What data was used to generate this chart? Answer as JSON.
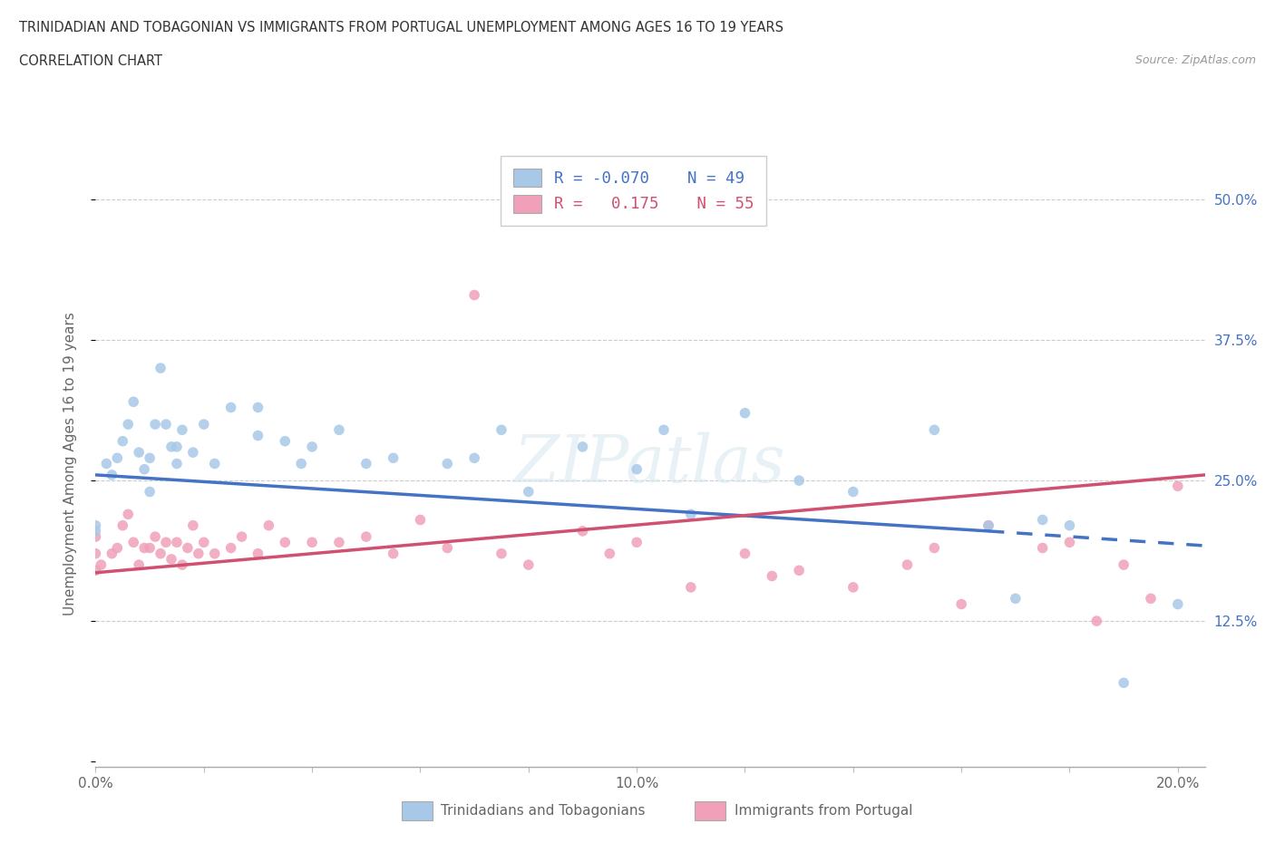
{
  "title_line1": "TRINIDADIAN AND TOBAGONIAN VS IMMIGRANTS FROM PORTUGAL UNEMPLOYMENT AMONG AGES 16 TO 19 YEARS",
  "title_line2": "CORRELATION CHART",
  "source_text": "Source: ZipAtlas.com",
  "ylabel": "Unemployment Among Ages 16 to 19 years",
  "xlim": [
    0.0,
    0.205
  ],
  "ylim": [
    -0.005,
    0.535
  ],
  "blue_color": "#a8c8e8",
  "pink_color": "#f0a0b8",
  "blue_line_color": "#4472c4",
  "pink_line_color": "#d05070",
  "blue_R": -0.07,
  "blue_N": 49,
  "pink_R": 0.175,
  "pink_N": 55,
  "ytick_positions": [
    0.0,
    0.125,
    0.25,
    0.375,
    0.5
  ],
  "ytick_labels_right": [
    "",
    "12.5%",
    "25.0%",
    "37.5%",
    "50.0%"
  ],
  "xtick_positions": [
    0.0,
    0.02,
    0.04,
    0.06,
    0.08,
    0.1,
    0.12,
    0.14,
    0.16,
    0.18,
    0.2
  ],
  "xtick_labels": [
    "0.0%",
    "",
    "",
    "",
    "",
    "10.0%",
    "",
    "",
    "",
    "",
    "20.0%"
  ],
  "blue_line_x0": 0.0,
  "blue_line_y0": 0.255,
  "blue_line_x1": 0.165,
  "blue_line_y1": 0.205,
  "blue_line_dash_x0": 0.165,
  "blue_line_dash_y0": 0.205,
  "blue_line_dash_x1": 0.205,
  "blue_line_dash_y1": 0.192,
  "pink_line_x0": 0.0,
  "pink_line_y0": 0.168,
  "pink_line_x1": 0.205,
  "pink_line_y1": 0.255,
  "blue_x": [
    0.0,
    0.0,
    0.002,
    0.003,
    0.004,
    0.005,
    0.006,
    0.007,
    0.008,
    0.009,
    0.01,
    0.01,
    0.011,
    0.012,
    0.013,
    0.014,
    0.015,
    0.015,
    0.016,
    0.018,
    0.02,
    0.022,
    0.025,
    0.03,
    0.03,
    0.035,
    0.038,
    0.04,
    0.045,
    0.05,
    0.055,
    0.065,
    0.07,
    0.075,
    0.08,
    0.09,
    0.1,
    0.105,
    0.11,
    0.12,
    0.13,
    0.14,
    0.155,
    0.165,
    0.17,
    0.175,
    0.18,
    0.19,
    0.2
  ],
  "blue_y": [
    0.205,
    0.21,
    0.265,
    0.255,
    0.27,
    0.285,
    0.3,
    0.32,
    0.275,
    0.26,
    0.27,
    0.24,
    0.3,
    0.35,
    0.3,
    0.28,
    0.265,
    0.28,
    0.295,
    0.275,
    0.3,
    0.265,
    0.315,
    0.29,
    0.315,
    0.285,
    0.265,
    0.28,
    0.295,
    0.265,
    0.27,
    0.265,
    0.27,
    0.295,
    0.24,
    0.28,
    0.26,
    0.295,
    0.22,
    0.31,
    0.25,
    0.24,
    0.295,
    0.21,
    0.145,
    0.215,
    0.21,
    0.07,
    0.14
  ],
  "pink_x": [
    0.0,
    0.0,
    0.0,
    0.001,
    0.003,
    0.004,
    0.005,
    0.006,
    0.007,
    0.008,
    0.009,
    0.01,
    0.011,
    0.012,
    0.013,
    0.014,
    0.015,
    0.016,
    0.017,
    0.018,
    0.019,
    0.02,
    0.022,
    0.025,
    0.027,
    0.03,
    0.032,
    0.035,
    0.04,
    0.045,
    0.05,
    0.055,
    0.06,
    0.065,
    0.07,
    0.075,
    0.08,
    0.09,
    0.095,
    0.1,
    0.11,
    0.12,
    0.125,
    0.13,
    0.14,
    0.15,
    0.155,
    0.16,
    0.165,
    0.175,
    0.18,
    0.185,
    0.19,
    0.195,
    0.2
  ],
  "pink_y": [
    0.17,
    0.185,
    0.2,
    0.175,
    0.185,
    0.19,
    0.21,
    0.22,
    0.195,
    0.175,
    0.19,
    0.19,
    0.2,
    0.185,
    0.195,
    0.18,
    0.195,
    0.175,
    0.19,
    0.21,
    0.185,
    0.195,
    0.185,
    0.19,
    0.2,
    0.185,
    0.21,
    0.195,
    0.195,
    0.195,
    0.2,
    0.185,
    0.215,
    0.19,
    0.415,
    0.185,
    0.175,
    0.205,
    0.185,
    0.195,
    0.155,
    0.185,
    0.165,
    0.17,
    0.155,
    0.175,
    0.19,
    0.14,
    0.21,
    0.19,
    0.195,
    0.125,
    0.175,
    0.145,
    0.245
  ]
}
